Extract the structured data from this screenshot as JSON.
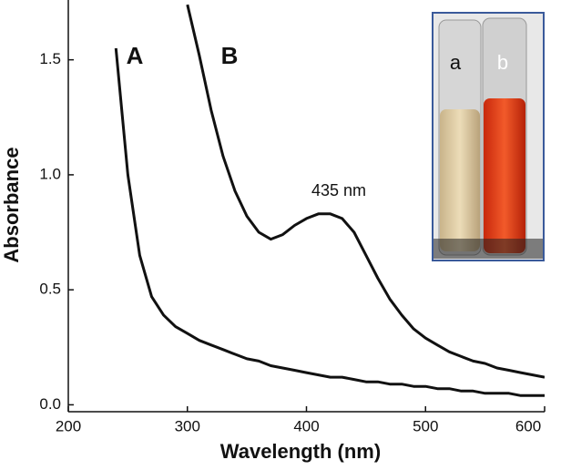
{
  "chart_data": {
    "type": "line",
    "x_label": "Wavelength (nm)",
    "y_label": "Absorbance",
    "x": [
      240,
      250,
      260,
      270,
      280,
      290,
      300,
      310,
      320,
      330,
      340,
      350,
      360,
      370,
      380,
      390,
      400,
      410,
      420,
      430,
      440,
      450,
      460,
      470,
      480,
      490,
      500,
      510,
      520,
      530,
      540,
      550,
      560,
      570,
      580,
      590,
      600
    ],
    "series": [
      {
        "name": "A",
        "color": "#111111",
        "values": [
          1.55,
          1.0,
          0.65,
          0.47,
          0.39,
          0.34,
          0.31,
          0.28,
          0.26,
          0.24,
          0.22,
          0.2,
          0.19,
          0.17,
          0.16,
          0.15,
          0.14,
          0.13,
          0.12,
          0.12,
          0.11,
          0.1,
          0.1,
          0.09,
          0.09,
          0.08,
          0.08,
          0.07,
          0.07,
          0.06,
          0.06,
          0.05,
          0.05,
          0.05,
          0.04,
          0.04,
          0.04
        ]
      },
      {
        "name": "B",
        "color": "#111111",
        "values": [
          null,
          null,
          null,
          null,
          null,
          null,
          1.74,
          1.52,
          1.28,
          1.08,
          0.93,
          0.82,
          0.75,
          0.72,
          0.74,
          0.78,
          0.81,
          0.83,
          0.83,
          0.81,
          0.75,
          0.65,
          0.55,
          0.46,
          0.39,
          0.33,
          0.29,
          0.26,
          0.23,
          0.21,
          0.19,
          0.18,
          0.16,
          0.15,
          0.14,
          0.13,
          0.12
        ]
      }
    ],
    "xlim": [
      200,
      600
    ],
    "ylim": [
      -0.03,
      1.76
    ],
    "xticks": [
      200,
      300,
      400,
      500,
      600
    ],
    "yticks": [
      {
        "value": 0,
        "label": "0.0"
      },
      0.5,
      {
        "value": 1,
        "label": "1.0"
      },
      1.5
    ],
    "annotations": [
      "435 nm"
    ],
    "inset_labels": [
      "a",
      "b"
    ]
  }
}
